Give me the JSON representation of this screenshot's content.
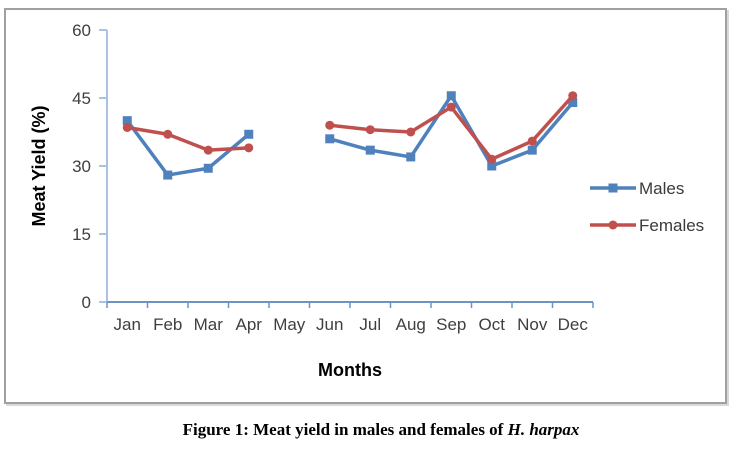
{
  "figure": {
    "caption_prefix": "Figure 1: Meat yield in males and females of ",
    "caption_species": "H. harpax"
  },
  "chart_data": {
    "type": "line",
    "title": "",
    "xlabel": "Months",
    "ylabel": "Meat Yield (%)",
    "ylim": [
      0,
      60
    ],
    "yticks": [
      0,
      15,
      30,
      45,
      60
    ],
    "grid": false,
    "legend_position": "right-middle",
    "categories": [
      "Jan",
      "Feb",
      "Mar",
      "Apr",
      "May",
      "Jun",
      "Jul",
      "Aug",
      "Sep",
      "Oct",
      "Nov",
      "Dec"
    ],
    "series": [
      {
        "name": "Males",
        "color": "#4F81BD",
        "marker": "square",
        "values": [
          40,
          28,
          29.5,
          37,
          null,
          36,
          33.5,
          32,
          45.5,
          30,
          33.5,
          44
        ]
      },
      {
        "name": "Females",
        "color": "#C0504D",
        "marker": "circle",
        "values": [
          38.5,
          37,
          33.5,
          34,
          null,
          39,
          38,
          37.5,
          43,
          31.5,
          35.5,
          45.5
        ]
      }
    ],
    "axis_colors": {
      "x": "#6b94c5",
      "y": "#a9c2e2"
    },
    "tick_label_color": "#3f3f3f",
    "legend_text_color": "#3a3a3a",
    "axis_title_color": "#000000"
  }
}
